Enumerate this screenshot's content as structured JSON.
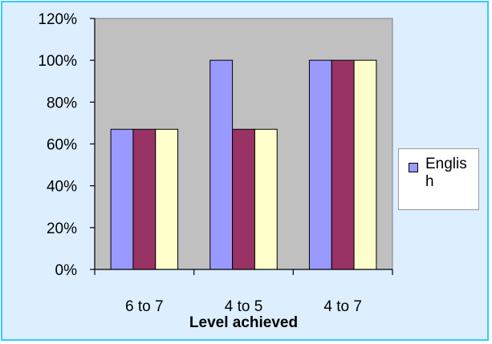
{
  "chart_data": {
    "type": "bar",
    "categories": [
      "6 to 7",
      "4 to 5",
      "4 to 7"
    ],
    "series": [
      {
        "name": "English",
        "values": [
          67,
          100,
          100
        ],
        "color": "#9999FF"
      },
      {
        "name": "",
        "values": [
          67,
          67,
          100
        ],
        "color": "#993366"
      },
      {
        "name": "",
        "values": [
          67,
          67,
          100
        ],
        "color": "#FFFFCC"
      }
    ],
    "title": "",
    "xlabel": "Level achieved",
    "ylabel": "",
    "ylim": [
      0,
      120
    ],
    "yticks": [
      "0%",
      "20%",
      "40%",
      "60%",
      "80%",
      "100%",
      "120%"
    ],
    "grid": false,
    "legend": "right",
    "plot_background": "#C0C0C0",
    "frame_background": "#DDEEFF",
    "frame_border": "#33CCFF"
  }
}
